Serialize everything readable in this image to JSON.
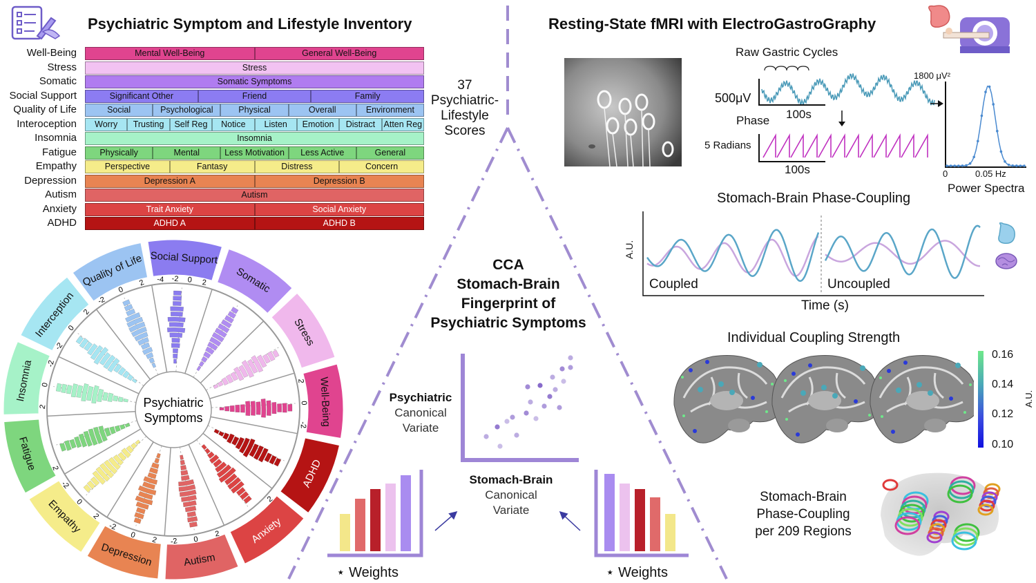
{
  "left": {
    "title": "Psychiatric Symptom and Lifestyle Inventory",
    "rows": [
      {
        "label": "Well-Being",
        "color": "#e0448f",
        "segments": [
          "Mental Well-Being",
          "General Well-Being"
        ]
      },
      {
        "label": "Stress",
        "color": "#f2c2f2",
        "segments": [
          "Stress"
        ]
      },
      {
        "label": "Somatic",
        "color": "#b07cf0",
        "segments": [
          "Somatic Symptoms"
        ]
      },
      {
        "label": "Social Support",
        "color": "#8c7cf2",
        "segments": [
          "Significant Other",
          "Friend",
          "Family"
        ]
      },
      {
        "label": "Quality of Life",
        "color": "#9cc4f2",
        "segments": [
          "Social",
          "Psychological",
          "Physical",
          "Overall",
          "Environment"
        ]
      },
      {
        "label": "Interoception",
        "color": "#a6e6f2",
        "segments": [
          "Worry",
          "Trusting",
          "Self Reg",
          "Notice",
          "Listen",
          "Emotion",
          "Distract",
          "Atten Reg"
        ]
      },
      {
        "label": "Insomnia",
        "color": "#a6f2c8",
        "segments": [
          "Insomnia"
        ]
      },
      {
        "label": "Fatigue",
        "color": "#7ed67e",
        "segments": [
          "Physically",
          "Mental",
          "Less Motivation",
          "Less Active",
          "General"
        ]
      },
      {
        "label": "Empathy",
        "color": "#f5ec8a",
        "segments": [
          "Perspective",
          "Fantasy",
          "Distress",
          "Concern"
        ]
      },
      {
        "label": "Depression",
        "color": "#e88452",
        "segments": [
          "Depression A",
          "Depression B"
        ]
      },
      {
        "label": "Autism",
        "color": "#e06464",
        "segments": [
          "Autism"
        ]
      },
      {
        "label": "Anxiety",
        "color": "#dc4444",
        "segments": [
          "Trait Anxiety",
          "Social Anxiety"
        ]
      },
      {
        "label": "ADHD",
        "color": "#b51414",
        "segments": [
          "ADHD A",
          "ADHD B"
        ]
      }
    ],
    "scores_text": [
      "37",
      "Psychiatric-",
      "Lifestyle",
      "Scores"
    ]
  },
  "circle": {
    "center": [
      "Psychiatric",
      "Symptoms"
    ],
    "sectors": [
      {
        "name": "Social Support",
        "color": "#8b7cf0",
        "ticks": [
          "-4",
          "-2",
          "0",
          "2"
        ]
      },
      {
        "name": "Somatic",
        "color": "#b08cf2",
        "ticks": []
      },
      {
        "name": "Stress",
        "color": "#f0b8ec",
        "ticks": []
      },
      {
        "name": "Well-Being",
        "color": "#e0448f",
        "ticks": [
          "2",
          "0",
          "-2"
        ]
      },
      {
        "name": "ADHD",
        "color": "#b51414",
        "ticks": []
      },
      {
        "name": "Anxiety",
        "color": "#dc4444",
        "ticks": [
          "2"
        ]
      },
      {
        "name": "Autism",
        "color": "#e06464",
        "ticks": [
          "2",
          "0",
          "-2"
        ]
      },
      {
        "name": "Depression",
        "color": "#e88452",
        "ticks": [
          "2",
          "0",
          "-2"
        ]
      },
      {
        "name": "Empathy",
        "color": "#f5ec8a",
        "ticks": [
          "2",
          "0",
          "-2"
        ]
      },
      {
        "name": "Fatigue",
        "color": "#7ed67e",
        "ticks": [
          "2"
        ]
      },
      {
        "name": "Insomnia",
        "color": "#a6f2c8",
        "ticks": [
          "2",
          "0",
          "-2"
        ]
      },
      {
        "name": "Interception",
        "color": "#a6e6f2",
        "ticks": [
          "-2",
          "0",
          "2"
        ]
      },
      {
        "name": "Quality of Life",
        "color": "#9cc4f2",
        "ticks": [
          "-2",
          "0",
          "2"
        ]
      }
    ]
  },
  "right": {
    "title": "Resting-State fMRI with ElectroGastroGraphy",
    "raw_gastric": "Raw Gastric Cycles",
    "uv_scale": "500μV",
    "time_100s": "100s",
    "phase_label": "Phase",
    "radians": "5 Radians",
    "time_100s_b": "100s",
    "power_top": "1800 μV²",
    "power_x0": "0",
    "power_x1": "0.05 Hz",
    "power_label": "Power Spectra",
    "coupling_title": "Stomach-Brain Phase-Coupling",
    "coupling_ylabel": "A.U.",
    "coupled": "Coupled",
    "uncoupled": "Uncoupled",
    "time_label": "Time (s)",
    "strength_title": "Individual Coupling Strength",
    "colorbar": [
      "0.16",
      "0.14",
      "0.12",
      "0.10"
    ],
    "colorbar_unit": "A.U.",
    "regions": [
      "Stomach-Brain",
      "Phase-Coupling",
      "per 209 Regions"
    ]
  },
  "cca": {
    "title": [
      "CCA",
      "Stomach-Brain",
      "Fingerprint of",
      "Psychiatric Symptoms"
    ],
    "psych_bold": "Psychiatric",
    "psych_rest": [
      "Canonical",
      "Variate"
    ],
    "stomach_bold": "Stomach-Brain",
    "stomach_rest": [
      "Canonical",
      "Variate"
    ],
    "weights_left": "⋆ Weights",
    "weights_right": "⋆ Weights"
  }
}
